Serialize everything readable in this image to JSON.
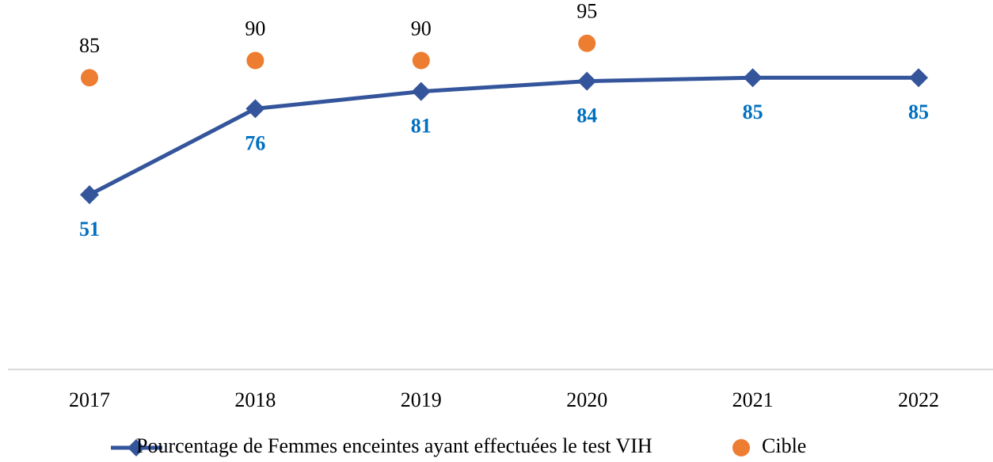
{
  "chart_data": {
    "type": "line",
    "categories": [
      "2017",
      "2018",
      "2019",
      "2020",
      "2021",
      "2022"
    ],
    "series": [
      {
        "name": "Pourcentage de Femmes enceintes ayant effectuées le test VIH",
        "color": "#34559b",
        "label_color": "#0070c0",
        "type": "line",
        "values": [
          51,
          76,
          81,
          84,
          85,
          85
        ]
      },
      {
        "name": "Cible",
        "color": "#ed7d31",
        "label_color": "#000000",
        "type": "scatter",
        "values": [
          85,
          90,
          90,
          95,
          null,
          null
        ]
      }
    ],
    "ylim": [
      0,
      100
    ],
    "legend": "bottom"
  }
}
